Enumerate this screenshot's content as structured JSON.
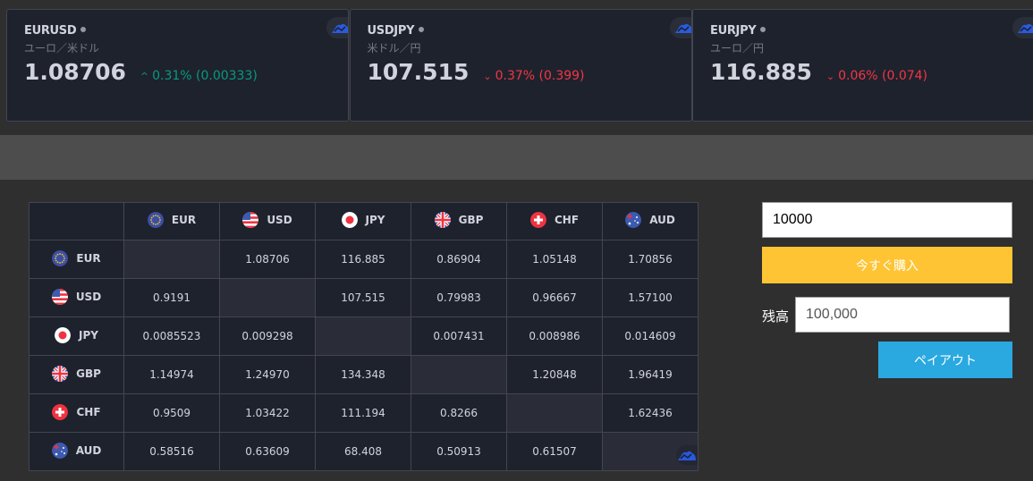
{
  "tickers": [
    {
      "symbol": "EURUSD",
      "description": "ユーロ／米ドル",
      "price": "1.08706",
      "direction": "up",
      "change": "0.31% (0.00333)"
    },
    {
      "symbol": "USDJPY",
      "description": "米ドル／円",
      "price": "107.515",
      "direction": "down",
      "change": "0.37% (0.399)"
    },
    {
      "symbol": "EURJPY",
      "description": "ユーロ／円",
      "price": "116.885",
      "direction": "down",
      "change": "0.06% (0.074)"
    }
  ],
  "colors": {
    "up": "#089981",
    "down": "#f23645",
    "buy": "#fec433",
    "payout": "#29a9e0"
  },
  "matrix": {
    "currencies": [
      "EUR",
      "USD",
      "JPY",
      "GBP",
      "CHF",
      "AUD"
    ],
    "rows": [
      [
        "",
        "1.08706",
        "116.885",
        "0.86904",
        "1.05148",
        "1.70856"
      ],
      [
        "0.9191",
        "",
        "107.515",
        "0.79983",
        "0.96667",
        "1.57100"
      ],
      [
        "0.0085523",
        "0.009298",
        "",
        "0.007431",
        "0.008986",
        "0.014609"
      ],
      [
        "1.14974",
        "1.24970",
        "134.348",
        "",
        "1.20848",
        "1.96419"
      ],
      [
        "0.9509",
        "1.03422",
        "111.194",
        "0.8266",
        "",
        "1.62436"
      ],
      [
        "0.58516",
        "0.63609",
        "68.408",
        "0.50913",
        "0.61507",
        ""
      ]
    ]
  },
  "trade": {
    "amount": "10000",
    "buy_label": "今すぐ購入",
    "balance_label": "残高",
    "balance": "100,000",
    "payout_label": "ペイアウト"
  }
}
